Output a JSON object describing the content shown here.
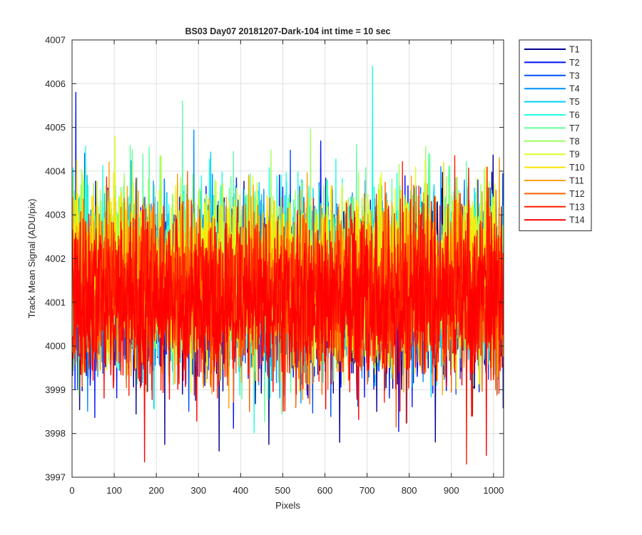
{
  "chart_data": {
    "type": "line",
    "title": "BS03 Day07 20181207-Dark-104 int time = 10 sec",
    "xlabel": "Pixels",
    "ylabel": "Track Mean Signal (ADU/pix)",
    "xlim": [
      0,
      1024
    ],
    "ylim": [
      3997,
      4007
    ],
    "xticks": [
      "0",
      "100",
      "200",
      "300",
      "400",
      "500",
      "600",
      "700",
      "800",
      "900",
      "1000"
    ],
    "yticks": [
      "3997",
      "3998",
      "3999",
      "4000",
      "4001",
      "4002",
      "4003",
      "4004",
      "4005",
      "4006",
      "4007"
    ],
    "grid": true,
    "legend_position": "outside-top-right",
    "n_points": 1024,
    "series": [
      {
        "name": "T1",
        "color": "#00008f",
        "mean": 4001.2
      },
      {
        "name": "T2",
        "color": "#0010ff",
        "mean": 4001.2
      },
      {
        "name": "T3",
        "color": "#0050ff",
        "mean": 4001.3
      },
      {
        "name": "T4",
        "color": "#0090ff",
        "mean": 4001.4
      },
      {
        "name": "T5",
        "color": "#00d0ff",
        "mean": 4001.5
      },
      {
        "name": "T6",
        "color": "#20ffdf",
        "mean": 4001.6
      },
      {
        "name": "T7",
        "color": "#60ff9f",
        "mean": 4001.7
      },
      {
        "name": "T8",
        "color": "#9fff60",
        "mean": 4001.7
      },
      {
        "name": "T9",
        "color": "#dfff20",
        "mean": 4001.6
      },
      {
        "name": "T10",
        "color": "#ffe000",
        "mean": 4001.5
      },
      {
        "name": "T11",
        "color": "#ffa000",
        "mean": 4001.4
      },
      {
        "name": "T12",
        "color": "#ff6000",
        "mean": 4001.3
      },
      {
        "name": "T13",
        "color": "#ff2000",
        "mean": 4001.2
      },
      {
        "name": "T14",
        "color": "#ff0000",
        "mean": 4001.0
      }
    ],
    "annotated_extremes": [
      {
        "series": "T6",
        "x": 712,
        "y": 4006.4
      },
      {
        "series": "T2",
        "x": 8,
        "y": 4005.8
      },
      {
        "series": "T14",
        "x": 171,
        "y": 3997.35
      },
      {
        "series": "T13",
        "x": 935,
        "y": 3997.3
      },
      {
        "series": "T1",
        "x": 348,
        "y": 3997.6
      },
      {
        "series": "T14",
        "x": 982,
        "y": 3997.5
      }
    ]
  }
}
